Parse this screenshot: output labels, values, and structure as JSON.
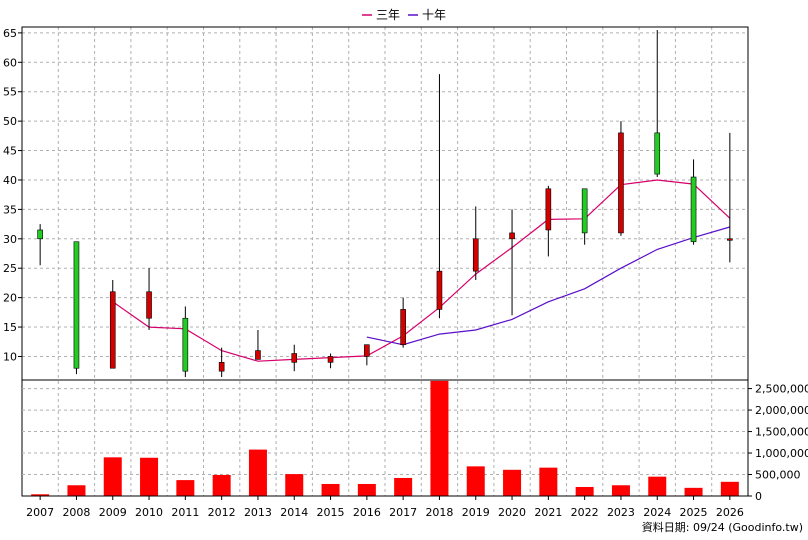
{
  "legend": [
    {
      "label": "三年",
      "color": "#d6006b"
    },
    {
      "label": "十年",
      "color": "#5a0fc8"
    }
  ],
  "source": "資料日期: 09/24 (Goodinfo.tw)",
  "colors": {
    "up": "#d40000",
    "down": "#22cc22",
    "volume": "#ff0000",
    "grid": "#b0b0b0"
  },
  "chart_data": [
    {
      "type": "candlestick",
      "title": "",
      "categories": [
        "2007",
        "2008",
        "2009",
        "2010",
        "2011",
        "2012",
        "2013",
        "2014",
        "2015",
        "2016",
        "2017",
        "2018",
        "2019",
        "2020",
        "2021",
        "2022",
        "2023",
        "2024",
        "2025",
        "2026"
      ],
      "ylim": [
        6,
        66
      ],
      "yticks": [
        10,
        15,
        20,
        25,
        30,
        35,
        40,
        45,
        50,
        55,
        60,
        65
      ],
      "grid": true,
      "candles": [
        {
          "open": 31.5,
          "high": 32.5,
          "low": 25.5,
          "close": 30.0
        },
        {
          "open": 29.5,
          "high": 29.5,
          "low": 7.0,
          "close": 8.0
        },
        {
          "open": 8.0,
          "high": 23.0,
          "low": 8.0,
          "close": 21.0
        },
        {
          "open": 16.5,
          "high": 25.0,
          "low": 14.5,
          "close": 21.0
        },
        {
          "open": 16.5,
          "high": 18.5,
          "low": 6.5,
          "close": 7.5
        },
        {
          "open": 7.5,
          "high": 11.5,
          "low": 6.5,
          "close": 9.0
        },
        {
          "open": 9.5,
          "high": 14.5,
          "low": 9.5,
          "close": 11.0
        },
        {
          "open": 9.0,
          "high": 12.0,
          "low": 7.5,
          "close": 10.5
        },
        {
          "open": 9.0,
          "high": 10.5,
          "low": 8.0,
          "close": 10.0
        },
        {
          "open": 10.0,
          "high": 12.0,
          "low": 8.5,
          "close": 12.0
        },
        {
          "open": 12.0,
          "high": 20.0,
          "low": 11.5,
          "close": 18.0
        },
        {
          "open": 18.0,
          "high": 58.0,
          "low": 16.5,
          "close": 24.5
        },
        {
          "open": 24.5,
          "high": 35.5,
          "low": 23.0,
          "close": 30.0
        },
        {
          "open": 30.0,
          "high": 35.0,
          "low": 17.0,
          "close": 31.0
        },
        {
          "open": 31.5,
          "high": 39.0,
          "low": 27.0,
          "close": 38.5
        },
        {
          "open": 38.5,
          "high": 38.5,
          "low": 29.0,
          "close": 31.0
        },
        {
          "open": 31.0,
          "high": 50.0,
          "low": 30.5,
          "close": 48.0
        },
        {
          "open": 48.0,
          "high": 65.5,
          "low": 40.5,
          "close": 41.0
        },
        {
          "open": 40.5,
          "high": 43.5,
          "low": 29.0,
          "close": 29.5
        },
        {
          "open": 30.0,
          "high": 48.0,
          "low": 26.0,
          "close": 30.0
        }
      ],
      "series": [
        {
          "name": "三年",
          "color": "#d6006b",
          "values": [
            null,
            null,
            19.3,
            15.0,
            14.7,
            11.0,
            9.2,
            9.5,
            9.8,
            10.1,
            13.5,
            18.3,
            24.0,
            28.5,
            33.3,
            33.4,
            39.2,
            40.0,
            39.3,
            33.5
          ]
        },
        {
          "name": "十年",
          "color": "#5a0fc8",
          "values": [
            null,
            null,
            null,
            null,
            null,
            null,
            null,
            null,
            null,
            13.3,
            12.0,
            13.8,
            14.5,
            16.3,
            19.3,
            21.5,
            25.0,
            28.2,
            30.2,
            32.0
          ]
        }
      ]
    },
    {
      "type": "bar",
      "title": "",
      "categories": [
        "2007",
        "2008",
        "2009",
        "2010",
        "2011",
        "2012",
        "2013",
        "2014",
        "2015",
        "2016",
        "2017",
        "2018",
        "2019",
        "2020",
        "2021",
        "2022",
        "2023",
        "2024",
        "2025",
        "2026"
      ],
      "values": [
        40000,
        250000,
        900000,
        890000,
        370000,
        490000,
        1080000,
        510000,
        280000,
        280000,
        420000,
        2680000,
        690000,
        610000,
        660000,
        210000,
        250000,
        450000,
        190000,
        330000
      ],
      "ylim": [
        0,
        2700000
      ],
      "yticks": [
        0,
        500000,
        1000000,
        1500000,
        2000000,
        2500000
      ],
      "ytick_labels": [
        "0",
        "500,000",
        "1,000,000",
        "1,500,000",
        "2,000,000",
        "2,500,000"
      ],
      "grid": true
    }
  ]
}
